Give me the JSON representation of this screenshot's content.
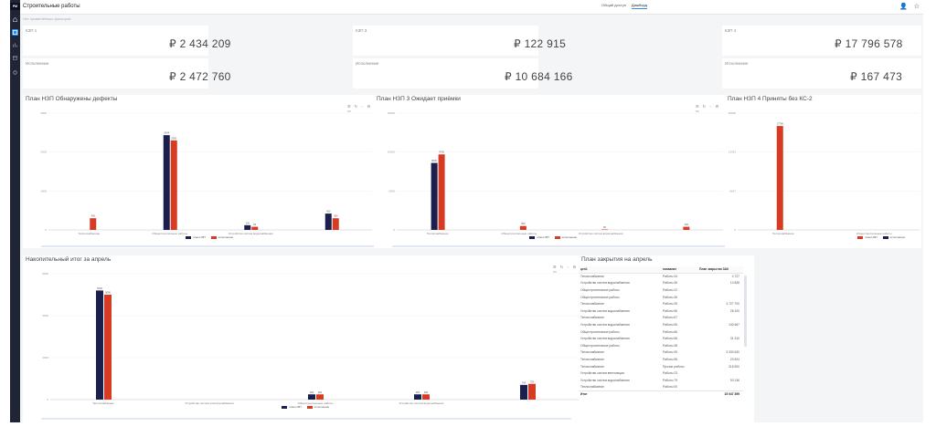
{
  "app": {
    "logo": "РМ",
    "title": "Строительные работы",
    "tabs": [
      "Общий доступ",
      "Дашборд"
    ],
    "active_tab": 1,
    "icon_person": "👤",
    "icon_star": "☆",
    "filter_placeholder": "Нет применённых фильтров",
    "accent": "#2d8cf0"
  },
  "kpis": [
    {
      "label": "КЗП 1",
      "value": "₽ 2 434 209"
    },
    {
      "label": "КЗП 3",
      "value": "₽ 122 915"
    },
    {
      "label": "КЗП 4",
      "value": "₽ 17 796 578"
    },
    {
      "label": "Исполнение",
      "value": "₽ 2 472 760"
    },
    {
      "label": "Исполнение",
      "value": "₽ 10 684 166"
    },
    {
      "label": "Исполнение",
      "value": "₽ 167 473"
    }
  ],
  "panels": {
    "p1": {
      "title": "План НЗП Обнаружены дефекты",
      "toolbar": "☰ ↻ ◌ ⚙ ▭"
    },
    "p2": {
      "title": "План НЗП 3 Ожидает приёмки",
      "toolbar": "☰ ↻ ◌ ⚙ ▭"
    },
    "p3": {
      "title": "План НЗП 4 Приняты без КС-2"
    },
    "p4": {
      "title": "Накопительный итог за апрель",
      "toolbar": "☰ ↻ ◌ ⚙ ▭"
    },
    "p5": {
      "title": "План закрытия на апрель"
    }
  },
  "colors": {
    "series_a": "#1a1f4d",
    "series_b": "#d63b24"
  },
  "chart_data": [
    {
      "type": "bar",
      "title": "План НЗП Обнаружены дефекты",
      "categories": [
        "Теплоснабжение",
        "Общестроительные работы",
        "Устройство систем водоснабжения",
        ""
      ],
      "series": [
        {
          "name": "план НЗП",
          "values": [
            0,
            2434,
            120,
            420
          ]
        },
        {
          "name": "исполнение",
          "values": [
            300,
            2300,
            80,
            300
          ]
        }
      ],
      "data_labels": [
        "",
        "",
        "",
        "",
        "",
        "",
        "",
        ""
      ],
      "ylim": [
        0,
        3000
      ]
    },
    {
      "type": "bar",
      "title": "План НЗП 3 Ожидает приёмки",
      "categories": [
        "Теплоснабжение",
        "Общестроительные работы",
        "Устройство систем водоснабжения",
        ""
      ],
      "series": [
        {
          "name": "план НЗП",
          "values": [
            8600,
            0,
            0,
            0
          ]
        },
        {
          "name": "исполнение",
          "values": [
            9700,
            500,
            60,
            400
          ]
        }
      ],
      "ylim": [
        0,
        15000
      ]
    },
    {
      "type": "bar",
      "title": "План НЗП 4 Приняты без КС-2",
      "categories": [
        "Теплоснабжение",
        "Общестроительные работы"
      ],
      "series": [
        {
          "name": "план НЗП",
          "values": [
            17796,
            0
          ]
        },
        {
          "name": "исполнение",
          "values": [
            0,
            0
          ]
        }
      ],
      "ylim": [
        0,
        20000
      ]
    },
    {
      "type": "bar",
      "title": "Накопительный итог за апрель",
      "categories": [
        "Теплоснабжение",
        "Устройство систем электроснабжения",
        "Общестроительные работы",
        "Устройство систем водоснабжения",
        ""
      ],
      "series": [
        {
          "name": "план НЗП",
          "values": [
            5200,
            0,
            250,
            250,
            700
          ]
        },
        {
          "name": "исполнение",
          "values": [
            5000,
            0,
            250,
            250,
            750
          ]
        }
      ],
      "ylim": [
        0,
        6000
      ]
    }
  ],
  "table": {
    "headers": [
      "цеп1",
      "название",
      "План закрытия ЗАК"
    ],
    "rows": [
      [
        "Теплоснабжение",
        "Работы 34",
        "4 727"
      ],
      [
        "Устройство систем водоснабжения",
        "Работы 36",
        "10 828"
      ],
      [
        "Общестроительные работы",
        "Работы 22",
        ""
      ],
      [
        "Общестроительные работы",
        "Работы 36",
        ""
      ],
      [
        "Теплоснабжение",
        "Работы 39",
        "4 727 700"
      ],
      [
        "Устройство систем водоснабжения",
        "Работы 56",
        "28 100"
      ],
      [
        "Теплоснабжение",
        "Работы 67",
        ""
      ],
      [
        "Устройство систем водоснабжения",
        "Работы 55",
        "140 667"
      ],
      [
        "Общестроительные работы",
        "Работы 66",
        ""
      ],
      [
        "Устройство систем водоснабжения",
        "Работы 66",
        "31 310"
      ],
      [
        "Общестроительные работы",
        "Работы 38",
        ""
      ],
      [
        "Теплоснабжение",
        "Работы 39",
        "3 330 620"
      ],
      [
        "Теплоснабжение",
        "Работы 58",
        "23 824"
      ],
      [
        "Теплоснабжение",
        "Прочие работы",
        "218 500"
      ],
      [
        "Устройство систем вентиляции",
        "Работы 23",
        ""
      ],
      [
        "Устройство систем водоснабжения",
        "Работы 79",
        "93 136"
      ],
      [
        "Теплоснабжение",
        "Работы 00",
        ""
      ]
    ],
    "total_label": "Итог",
    "total_value": "15 047 399"
  }
}
